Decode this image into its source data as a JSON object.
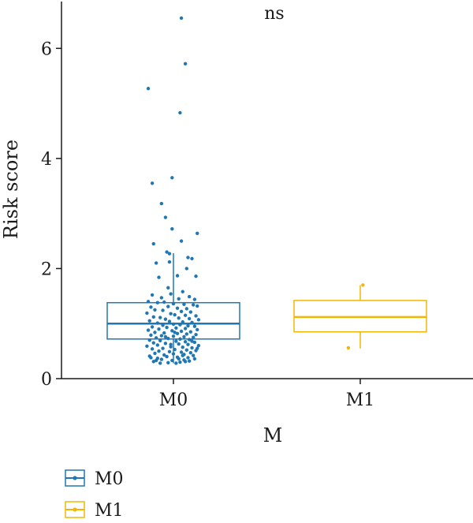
{
  "chart_data": {
    "type": "box",
    "xlabel": "M",
    "ylabel": "Risk score",
    "ylim": [
      0,
      6.85
    ],
    "yticks": [
      0,
      2,
      4,
      6
    ],
    "categories": [
      "M0",
      "M1"
    ],
    "significance": "ns",
    "legend": {
      "placement": "bottom-left",
      "entries": [
        "M0",
        "M1"
      ]
    },
    "colors": {
      "M0": "#1f77b4",
      "M1": "#f2b705"
    },
    "boxes": [
      {
        "name": "M0",
        "q1": 0.72,
        "median": 1.0,
        "q3": 1.38,
        "whisker_low": 0.28,
        "whisker_high": 2.28,
        "points": [
          [
            -0.19,
            5.27
          ],
          [
            0.06,
            6.55
          ],
          [
            0.09,
            5.72
          ],
          [
            0.05,
            4.83
          ],
          [
            -0.01,
            3.65
          ],
          [
            -0.16,
            3.55
          ],
          [
            -0.09,
            3.18
          ],
          [
            -0.06,
            2.93
          ],
          [
            -0.01,
            2.72
          ],
          [
            0.06,
            2.5
          ],
          [
            0.18,
            2.64
          ],
          [
            -0.15,
            2.45
          ],
          [
            -0.05,
            2.3
          ],
          [
            -0.03,
            2.27
          ],
          [
            0.14,
            2.18
          ],
          [
            0.11,
            2.2
          ],
          [
            -0.13,
            2.1
          ],
          [
            -0.03,
            2.12
          ],
          [
            0.1,
            2.0
          ],
          [
            0.03,
            1.87
          ],
          [
            -0.11,
            1.84
          ],
          [
            0.17,
            1.86
          ],
          [
            -0.04,
            1.65
          ],
          [
            0.07,
            1.58
          ],
          [
            -0.16,
            1.52
          ],
          [
            -0.02,
            1.54
          ],
          [
            0.12,
            1.49
          ],
          [
            -0.09,
            1.47
          ],
          [
            0.04,
            1.45
          ],
          [
            0.16,
            1.44
          ],
          [
            -0.19,
            1.4
          ],
          [
            -0.12,
            1.38
          ],
          [
            -0.07,
            1.39
          ],
          [
            0.0,
            1.36
          ],
          [
            0.08,
            1.35
          ],
          [
            0.15,
            1.34
          ],
          [
            0.18,
            1.32
          ],
          [
            -0.17,
            1.3
          ],
          [
            -0.04,
            1.31
          ],
          [
            0.03,
            1.28
          ],
          [
            0.1,
            1.27
          ],
          [
            -0.14,
            1.25
          ],
          [
            -0.08,
            1.24
          ],
          [
            0.06,
            1.22
          ],
          [
            0.13,
            1.21
          ],
          [
            -0.2,
            1.19
          ],
          [
            -0.02,
            1.18
          ],
          [
            0.01,
            1.16
          ],
          [
            0.09,
            1.15
          ],
          [
            0.17,
            1.14
          ],
          [
            -0.15,
            1.12
          ],
          [
            -0.1,
            1.11
          ],
          [
            0.04,
            1.1
          ],
          [
            0.12,
            1.09
          ],
          [
            -0.06,
            1.08
          ],
          [
            0.19,
            1.07
          ],
          [
            -0.18,
            1.05
          ],
          [
            -0.03,
            1.04
          ],
          [
            0.07,
            1.03
          ],
          [
            0.14,
            1.02
          ],
          [
            -0.12,
            1.01
          ],
          [
            0.0,
            0.99
          ],
          [
            0.05,
            0.98
          ],
          [
            -0.08,
            0.97
          ],
          [
            0.11,
            0.96
          ],
          [
            0.16,
            0.95
          ],
          [
            -0.16,
            0.94
          ],
          [
            -0.05,
            0.93
          ],
          [
            0.02,
            0.92
          ],
          [
            0.09,
            0.91
          ],
          [
            -0.11,
            0.9
          ],
          [
            0.18,
            0.89
          ],
          [
            -0.19,
            0.88
          ],
          [
            -0.01,
            0.87
          ],
          [
            0.06,
            0.86
          ],
          [
            0.13,
            0.85
          ],
          [
            -0.14,
            0.84
          ],
          [
            -0.07,
            0.83
          ],
          [
            0.03,
            0.82
          ],
          [
            0.1,
            0.81
          ],
          [
            0.17,
            0.8
          ],
          [
            -0.17,
            0.79
          ],
          [
            -0.09,
            0.78
          ],
          [
            0.0,
            0.77
          ],
          [
            0.08,
            0.76
          ],
          [
            0.15,
            0.75
          ],
          [
            -0.13,
            0.74
          ],
          [
            -0.04,
            0.73
          ],
          [
            0.05,
            0.72
          ],
          [
            0.12,
            0.71
          ],
          [
            -0.18,
            0.7
          ],
          [
            -0.1,
            0.69
          ],
          [
            0.02,
            0.68
          ],
          [
            0.09,
            0.67
          ],
          [
            0.16,
            0.66
          ],
          [
            -0.15,
            0.65
          ],
          [
            -0.06,
            0.64
          ],
          [
            0.04,
            0.63
          ],
          [
            0.11,
            0.62
          ],
          [
            -0.12,
            0.61
          ],
          [
            0.19,
            0.6
          ],
          [
            -0.2,
            0.59
          ],
          [
            -0.02,
            0.58
          ],
          [
            0.07,
            0.57
          ],
          [
            0.14,
            0.56
          ],
          [
            -0.08,
            0.55
          ],
          [
            -0.16,
            0.54
          ],
          [
            0.01,
            0.53
          ],
          [
            0.1,
            0.52
          ],
          [
            0.17,
            0.51
          ],
          [
            -0.11,
            0.5
          ],
          [
            -0.03,
            0.49
          ],
          [
            0.06,
            0.48
          ],
          [
            0.13,
            0.47
          ],
          [
            -0.14,
            0.46
          ],
          [
            0.0,
            0.45
          ],
          [
            0.08,
            0.44
          ],
          [
            -0.07,
            0.43
          ],
          [
            0.15,
            0.42
          ],
          [
            -0.18,
            0.41
          ],
          [
            -0.05,
            0.4
          ],
          [
            0.03,
            0.39
          ],
          [
            0.11,
            0.38
          ],
          [
            -0.12,
            0.37
          ],
          [
            0.04,
            0.36
          ],
          [
            -0.09,
            0.35
          ],
          [
            0.08,
            0.34
          ],
          [
            -0.01,
            0.33
          ],
          [
            0.12,
            0.32
          ],
          [
            -0.15,
            0.31
          ],
          [
            0.05,
            0.3
          ],
          [
            -0.04,
            0.29
          ],
          [
            0.02,
            0.28
          ],
          [
            -0.1,
            0.28
          ],
          [
            0.09,
            0.31
          ],
          [
            -0.13,
            0.33
          ],
          [
            0.16,
            0.36
          ],
          [
            -0.17,
            0.38
          ],
          [
            0.07,
            0.42
          ],
          [
            0.18,
            0.55
          ],
          [
            -0.02,
            0.62
          ],
          [
            0.14,
            0.68
          ],
          [
            -0.06,
            0.76
          ],
          [
            0.01,
            0.84
          ]
        ]
      },
      {
        "name": "M1",
        "q1": 0.85,
        "median": 1.12,
        "q3": 1.42,
        "whisker_low": 0.55,
        "whisker_high": 1.7,
        "points": [
          [
            -0.09,
            0.56
          ],
          [
            0.02,
            1.7
          ]
        ]
      }
    ]
  }
}
